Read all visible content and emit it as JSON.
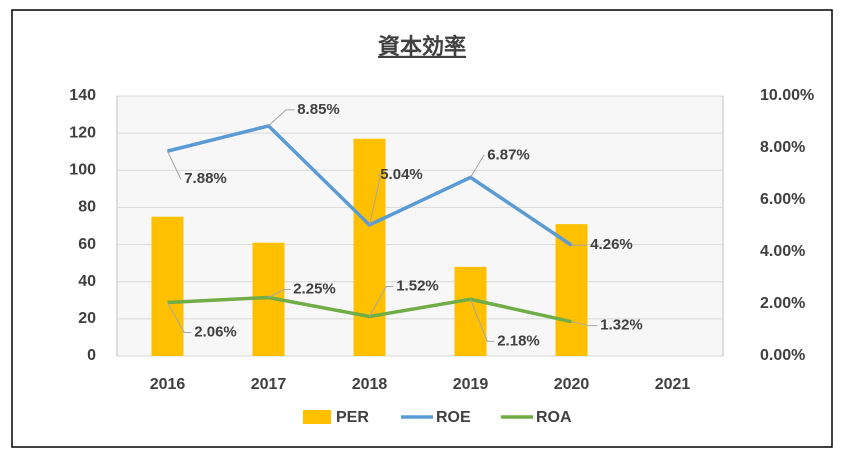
{
  "chart_data": {
    "type": "bar_line_combo",
    "title": "資本効率",
    "categories": [
      "2016",
      "2017",
      "2018",
      "2019",
      "2020",
      "2021"
    ],
    "series": [
      {
        "name": "PER",
        "type": "bar",
        "color": "#ffc000",
        "values": [
          75,
          61,
          117,
          48,
          71,
          null
        ]
      },
      {
        "name": "ROE",
        "type": "line",
        "axis": "y2",
        "color": "#5b9bd5",
        "values": [
          7.88,
          8.85,
          5.04,
          6.87,
          4.26,
          null
        ],
        "value_labels": [
          "7.88%",
          "8.85%",
          "5.04%",
          "6.87%",
          "4.26%",
          null
        ]
      },
      {
        "name": "ROA",
        "type": "line",
        "axis": "y2",
        "color": "#70ad47",
        "values": [
          2.06,
          2.25,
          1.52,
          2.18,
          1.32,
          null
        ],
        "value_labels": [
          "2.06%",
          "2.25%",
          "1.52%",
          "2.18%",
          "1.32%",
          null
        ]
      }
    ],
    "ylim": [
      0,
      140
    ],
    "yticks": [
      0,
      20,
      40,
      60,
      80,
      100,
      120,
      140
    ],
    "y2lim": [
      0,
      10
    ],
    "y2ticks": [
      {
        "value": 0,
        "label": "0.00%"
      },
      {
        "value": 2,
        "label": "2.00%"
      },
      {
        "value": 4,
        "label": "4.00%"
      },
      {
        "value": 6,
        "label": "6.00%"
      },
      {
        "value": 8,
        "label": "8.00%"
      },
      {
        "value": 10,
        "label": "10.00%"
      }
    ],
    "grid": true,
    "legend": "bottom"
  }
}
